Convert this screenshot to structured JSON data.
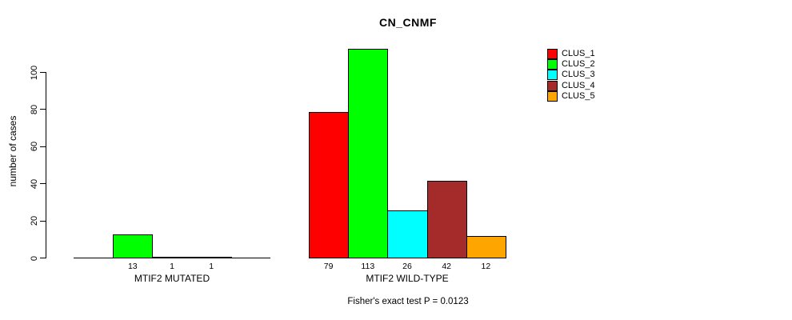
{
  "chart_data": {
    "type": "bar",
    "title": "CN_CNMF",
    "ylabel": "number of cases",
    "yticks": [
      0,
      20,
      40,
      60,
      80,
      100
    ],
    "ylim": [
      0,
      117
    ],
    "grid": false,
    "legend_position": "right",
    "value_label_rule": "labels shown under nonzero bars only",
    "clusters": [
      {
        "name": "CLUS_1",
        "color": "#FF0000"
      },
      {
        "name": "CLUS_2",
        "color": "#00FF00"
      },
      {
        "name": "CLUS_3",
        "color": "#00FFFF"
      },
      {
        "name": "CLUS_4",
        "color": "#A52A2A"
      },
      {
        "name": "CLUS_5",
        "color": "#FFA500"
      }
    ],
    "groups": [
      {
        "label": "MTIF2 MUTATED",
        "values": [
          0,
          13,
          1,
          1,
          0
        ]
      },
      {
        "label": "MTIF2 WILD-TYPE",
        "values": [
          79,
          113,
          26,
          42,
          12
        ]
      }
    ],
    "annotation": "Fisher's exact test P = 0.0123"
  }
}
